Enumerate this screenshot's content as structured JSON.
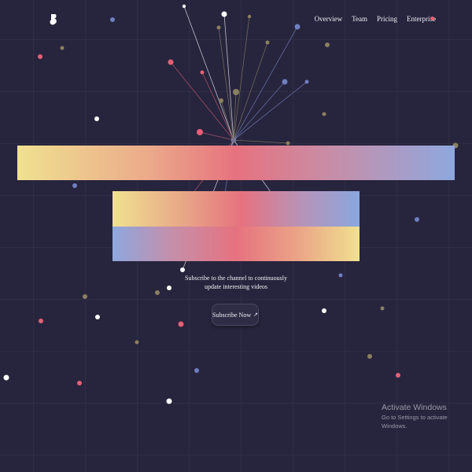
{
  "nav": {
    "items": [
      {
        "label": "Overview"
      },
      {
        "label": "Team"
      },
      {
        "label": "Pricing"
      },
      {
        "label": "Enterprise"
      }
    ]
  },
  "hero": {
    "tagline_line1": "Subscribe to the channel to continuously",
    "tagline_line2": "update interesting videos",
    "cta_label": "Subscribe Now",
    "cta_icon": "arrow-up-right-icon"
  },
  "watermark": {
    "title": "Activate Windows",
    "subtitle": "Go to Settings to activate Windows."
  },
  "colors": {
    "background": "#27243d",
    "gradient_yellow": "#f0e190",
    "gradient_pink": "#e6727f",
    "gradient_blue": "#8ea8df",
    "particle_white": "#ffffff",
    "particle_pink": "#e46075",
    "particle_blue": "#6f7fc0",
    "particle_olive": "#8a8060"
  }
}
